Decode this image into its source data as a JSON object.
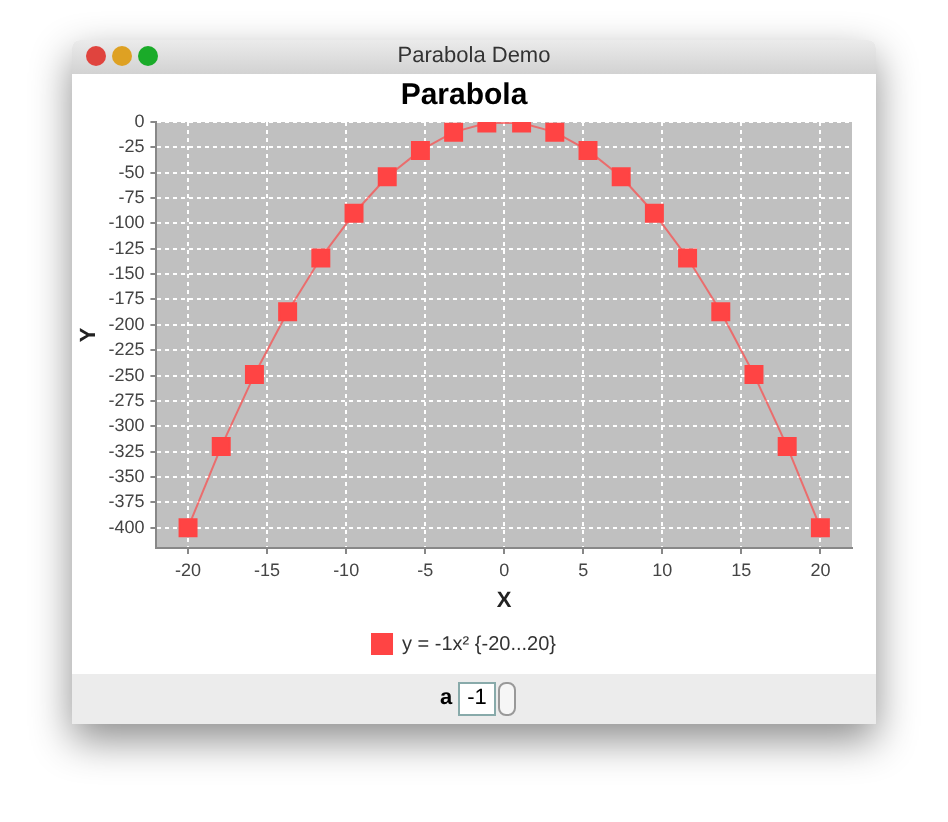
{
  "chart_data": {
    "type": "line",
    "title": "Parabola",
    "xlabel": "X",
    "ylabel": "Y",
    "annotations": [
      "Parabola Demo",
      "a",
      "-1"
    ],
    "series": [
      {
        "name": "y = -1x² {-20...20}",
        "color": "#ff4444",
        "x": [
          -20,
          -17.9,
          -15.8,
          -13.7,
          -11.6,
          -9.5,
          -7.4,
          -5.3,
          -3.2,
          -1.1,
          1.1,
          3.2,
          5.3,
          7.4,
          9.5,
          11.6,
          13.7,
          15.8,
          17.9,
          20
        ],
        "values": [
          -400,
          -320,
          -249,
          -187,
          -134,
          -90,
          -54,
          -28,
          -10,
          -1,
          -1,
          -10,
          -28,
          -54,
          -90,
          -134,
          -187,
          -249,
          -320,
          -400
        ]
      }
    ],
    "xlim": [
      -22,
      22
    ],
    "xticks": [
      -20,
      -15,
      -10,
      -5,
      0,
      5,
      10,
      15,
      20
    ],
    "ylim": [
      -420,
      0
    ],
    "yticks": [
      -400,
      -375,
      -350,
      -325,
      -300,
      -275,
      -250,
      -225,
      -200,
      -175,
      -150,
      -125,
      -100,
      -75,
      -50,
      -25,
      0
    ],
    "grid": true,
    "legend": "bottom",
    "marker": "square",
    "line_style": "solid"
  }
}
